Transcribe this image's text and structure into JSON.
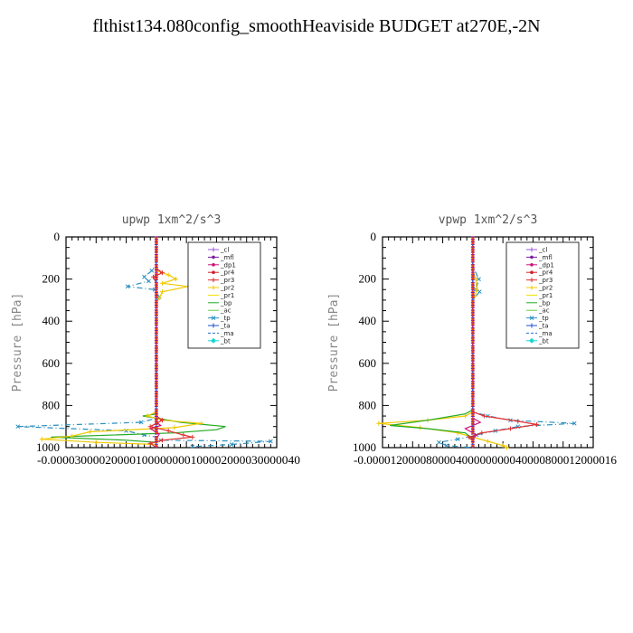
{
  "page_title": "flthist134.080config_smoothHeaviside  BUDGET at270E,-2N",
  "chart_data": [
    {
      "type": "line",
      "title": "upwp   1xm^2/s^3",
      "ylabel": "Pressure [hPa]",
      "xlim": [
        -3e-05,
        4e-05
      ],
      "ylim": [
        1000,
        0
      ],
      "yticks": [
        "0",
        "200",
        "400",
        "600",
        "800",
        "1000"
      ],
      "xticks": [
        "-0.00003",
        "-0.00002",
        "-0.00001",
        "0.00000",
        "0.00001",
        "0.00002",
        "0.00003",
        "0.00004"
      ],
      "xtick_text": "-0.00003000020000100000000100002000030000040",
      "legend": [
        "_cl",
        "_mfl",
        "_dp1",
        "_pr4",
        "_pr3",
        "_pr2",
        "_pr1",
        "_bp",
        "_ac",
        "_tp",
        "_ta",
        "_ma",
        "_bt"
      ],
      "series": [
        {
          "name": "_tp",
          "color": "#2a8fbf",
          "dash": "6,3,1,3",
          "marker": "x",
          "points": [
            [
              0,
              0
            ],
            [
              0,
              130
            ],
            [
              -1.5e-06,
              160
            ],
            [
              -4e-06,
              190
            ],
            [
              -2.5e-06,
              210
            ],
            [
              -9.5e-06,
              235
            ],
            [
              -5e-07,
              250
            ],
            [
              1e-06,
              285
            ],
            [
              0,
              310
            ],
            [
              0,
              860
            ],
            [
              -5e-06,
              880
            ],
            [
              -4.6e-05,
              900
            ],
            [
              -1e-05,
              920
            ],
            [
              -4e-06,
              940
            ],
            [
              0,
              950
            ],
            [
              1.5e-06,
              965
            ],
            [
              3.8e-05,
              970
            ],
            [
              2.5e-05,
              985
            ],
            [
              1.2e-05,
              995
            ]
          ]
        },
        {
          "name": "_bp",
          "color": "#22aa22",
          "dash": "",
          "marker": "",
          "points": [
            [
              0,
              0
            ],
            [
              0,
              840
            ],
            [
              -4.5e-06,
              850
            ],
            [
              0,
              860
            ],
            [
              8e-06,
              880
            ],
            [
              2.3e-05,
              900
            ],
            [
              2e-05,
              915
            ],
            [
              6e-06,
              930
            ],
            [
              -3.5e-05,
              950
            ],
            [
              -1e-05,
              965
            ],
            [
              0,
              975
            ],
            [
              0,
              1000
            ]
          ]
        },
        {
          "name": "_pr2",
          "color": "#f0c800",
          "dash": "",
          "marker": "+",
          "points": [
            [
              0,
              0
            ],
            [
              0,
              160
            ],
            [
              4e-06,
              180
            ],
            [
              6.5e-06,
              200
            ],
            [
              2e-06,
              220
            ],
            [
              1.05e-05,
              235
            ],
            [
              2e-06,
              260
            ],
            [
              1e-06,
              290
            ],
            [
              0,
              310
            ],
            [
              0,
              830
            ],
            [
              -3e-06,
              850
            ],
            [
              2e-06,
              870
            ],
            [
              1.5e-05,
              885
            ],
            [
              6e-06,
              905
            ],
            [
              -2.2e-05,
              925
            ],
            [
              -2.8e-05,
              945
            ],
            [
              -3.8e-05,
              960
            ],
            [
              -2e-05,
              975
            ],
            [
              0,
              985
            ]
          ]
        },
        {
          "name": "_pr3",
          "color": "#e03030",
          "dash": "",
          "marker": "+",
          "points": [
            [
              0,
              0
            ],
            [
              0,
              150
            ],
            [
              2e-06,
              170
            ],
            [
              -1e-06,
              190
            ],
            [
              0,
              220
            ],
            [
              0,
              850
            ],
            [
              2e-06,
              870
            ],
            [
              -2e-06,
              900
            ],
            [
              4e-06,
              920
            ],
            [
              9e-06,
              940
            ],
            [
              1.2e-05,
              950
            ],
            [
              2e-06,
              965
            ],
            [
              -2e-06,
              980
            ],
            [
              0,
              1000
            ]
          ]
        },
        {
          "name": "_dp1",
          "color": "#cc1177",
          "dash": "",
          "marker": "",
          "points": [
            [
              0,
              0
            ],
            [
              0,
              880
            ],
            [
              1.5e-06,
              895
            ],
            [
              -2e-06,
              910
            ],
            [
              1e-06,
              935
            ],
            [
              0,
              960
            ],
            [
              0,
              1000
            ]
          ]
        },
        {
          "name": "_ma",
          "color": "#1f6fd1",
          "dash": "2,2",
          "marker": "",
          "points": [
            [
              0,
              0
            ],
            [
              0,
              1000
            ]
          ]
        },
        {
          "name": "_bt",
          "color": "#ff4400",
          "dash": "8,2",
          "marker": "",
          "points": [
            [
              0,
              0
            ],
            [
              0,
              1000
            ]
          ]
        }
      ]
    },
    {
      "type": "line",
      "title": "vpwp   1xm^2/s^3",
      "ylabel": "Pressure [hPa]",
      "xlim": [
        -0.00012,
        0.00016
      ],
      "ylim": [
        1000,
        0
      ],
      "yticks": [
        "0",
        "200",
        "400",
        "600",
        "800",
        "1000"
      ],
      "xticks": [
        "-0.00012",
        "-0.00008",
        "-0.00004",
        "0.00000",
        "0.00004",
        "0.00008",
        "0.00012",
        "0.00016"
      ],
      "xtick_text": "-0.000012000080000400000000040000800012000016",
      "legend": [
        "_cl",
        "_mfl",
        "_dp1",
        "_pr4",
        "_pr3",
        "_pr2",
        "_pr1",
        "_bp",
        "_ac",
        "_tp",
        "_ta",
        "_ma",
        "_bt"
      ],
      "series": [
        {
          "name": "_tp",
          "color": "#2a8fbf",
          "dash": "6,3,1,3",
          "marker": "x",
          "points": [
            [
              0,
              0
            ],
            [
              0,
              140
            ],
            [
              8e-06,
              200
            ],
            [
              4e-06,
              250
            ],
            [
              9e-06,
              260
            ],
            [
              0,
              300
            ],
            [
              0,
              830
            ],
            [
              2e-05,
              850
            ],
            [
              5e-05,
              870
            ],
            [
              0.000135,
              885
            ],
            [
              6e-05,
              900
            ],
            [
              3e-05,
              920
            ],
            [
              5e-06,
              940
            ],
            [
              -2e-05,
              960
            ],
            [
              -4.5e-05,
              975
            ],
            [
              -3.5e-05,
              990
            ],
            [
              0,
              1000
            ]
          ]
        },
        {
          "name": "_pr2",
          "color": "#f0c800",
          "dash": "",
          "marker": "+",
          "points": [
            [
              0,
              0
            ],
            [
              0,
              160
            ],
            [
              4e-06,
              200
            ],
            [
              5e-06,
              250
            ],
            [
              3e-06,
              280
            ],
            [
              0,
              300
            ],
            [
              0,
              830
            ],
            [
              -1e-05,
              850
            ],
            [
              -6e-05,
              870
            ],
            [
              -0.000125,
              885
            ],
            [
              -7e-05,
              905
            ],
            [
              -2e-05,
              930
            ],
            [
              0,
              950
            ],
            [
              2e-05,
              970
            ],
            [
              4e-05,
              990
            ],
            [
              4.5e-05,
              1000
            ]
          ]
        },
        {
          "name": "_bp",
          "color": "#22aa22",
          "dash": "",
          "marker": "",
          "points": [
            [
              0,
              0
            ],
            [
              0,
              820
            ],
            [
              -1e-05,
              840
            ],
            [
              -6e-05,
              870
            ],
            [
              -0.00011,
              895
            ],
            [
              -6e-05,
              910
            ],
            [
              -1e-05,
              930
            ],
            [
              0,
              960
            ],
            [
              0,
              1000
            ]
          ]
        },
        {
          "name": "_pr3",
          "color": "#e03030",
          "dash": "",
          "marker": "+",
          "points": [
            [
              0,
              0
            ],
            [
              0,
              830
            ],
            [
              1.5e-05,
              850
            ],
            [
              6e-05,
              875
            ],
            [
              8.5e-05,
              890
            ],
            [
              5e-05,
              910
            ],
            [
              1.2e-05,
              930
            ],
            [
              -5e-06,
              950
            ],
            [
              0,
              970
            ],
            [
              0,
              1000
            ]
          ]
        },
        {
          "name": "_dp1",
          "color": "#cc1177",
          "dash": "",
          "marker": "",
          "points": [
            [
              0,
              0
            ],
            [
              0,
              860
            ],
            [
              1e-05,
              880
            ],
            [
              -1e-05,
              910
            ],
            [
              5e-06,
              940
            ],
            [
              0,
              960
            ],
            [
              0,
              1000
            ]
          ]
        },
        {
          "name": "_ma",
          "color": "#1f6fd1",
          "dash": "2,2",
          "marker": "",
          "points": [
            [
              0,
              0
            ],
            [
              0,
              1000
            ]
          ]
        },
        {
          "name": "_bt",
          "color": "#ff4400",
          "dash": "8,2",
          "marker": "",
          "points": [
            [
              0,
              0
            ],
            [
              0,
              1000
            ]
          ]
        }
      ]
    }
  ],
  "legend_styles": {
    "_cl": {
      "color": "#9955dd",
      "dash": "",
      "marker": "+"
    },
    "_mfl": {
      "color": "#7a1fa2",
      "dash": "",
      "marker": "dot"
    },
    "_dp1": {
      "color": "#cc1177",
      "dash": "",
      "marker": "dot"
    },
    "_pr4": {
      "color": "#d0202a",
      "dash": "",
      "marker": "dot"
    },
    "_pr3": {
      "color": "#e03030",
      "dash": "",
      "marker": "+"
    },
    "_pr2": {
      "color": "#f0c800",
      "dash": "",
      "marker": "+"
    },
    "_pr1": {
      "color": "#f0e000",
      "dash": "",
      "marker": ""
    },
    "_bp": {
      "color": "#22aa22",
      "dash": "",
      "marker": ""
    },
    "_ac": {
      "color": "#66cc44",
      "dash": "",
      "marker": ""
    },
    "_tp": {
      "color": "#2a8fbf",
      "dash": "",
      "marker": "x"
    },
    "_ta": {
      "color": "#1f4fd1",
      "dash": "",
      "marker": "+"
    },
    "_ma": {
      "color": "#1f6fd1",
      "dash": "3,2",
      "marker": ""
    },
    "_bt": {
      "color": "#18d6d6",
      "dash": "",
      "marker": "diamond"
    }
  }
}
